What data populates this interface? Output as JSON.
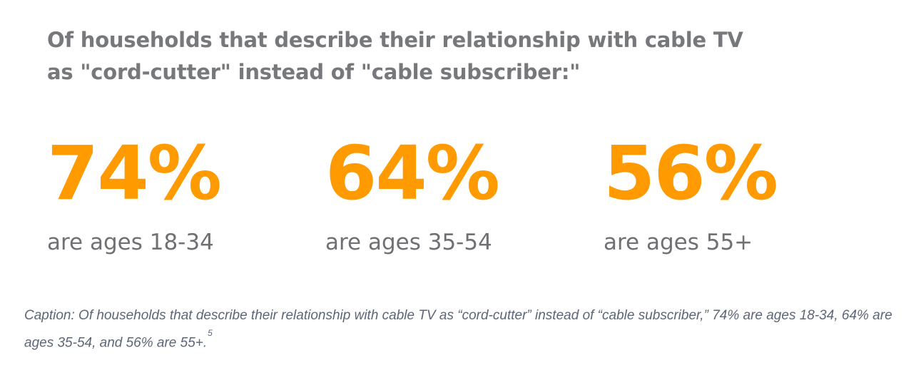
{
  "chart_data": {
    "type": "table",
    "title": "Of households that describe their relationship with cable TV as \"cord-cutter\" instead of \"cable subscriber:\"",
    "title_lines": [
      "Of households that describe their relationship with cable TV",
      "as \"cord-cutter\" instead of \"cable subscriber:\""
    ],
    "categories": [
      "are ages 18-34",
      "are ages 35-54",
      "are ages 55+"
    ],
    "values": [
      74,
      64,
      56
    ],
    "value_labels": [
      "74%",
      "64%",
      "56%"
    ],
    "colors": {
      "value": "#ff9a00",
      "title": "#77787b",
      "label": "#6f7073",
      "caption": "#5c6675"
    }
  },
  "caption": {
    "text": "Caption: Of households that describe their relationship with cable TV as “cord-cutter” instead of “cable subscriber,” 74% are ages 18-34, 64% are ages 35-54, and 56% are 55+.",
    "footnote_marker": "5"
  }
}
